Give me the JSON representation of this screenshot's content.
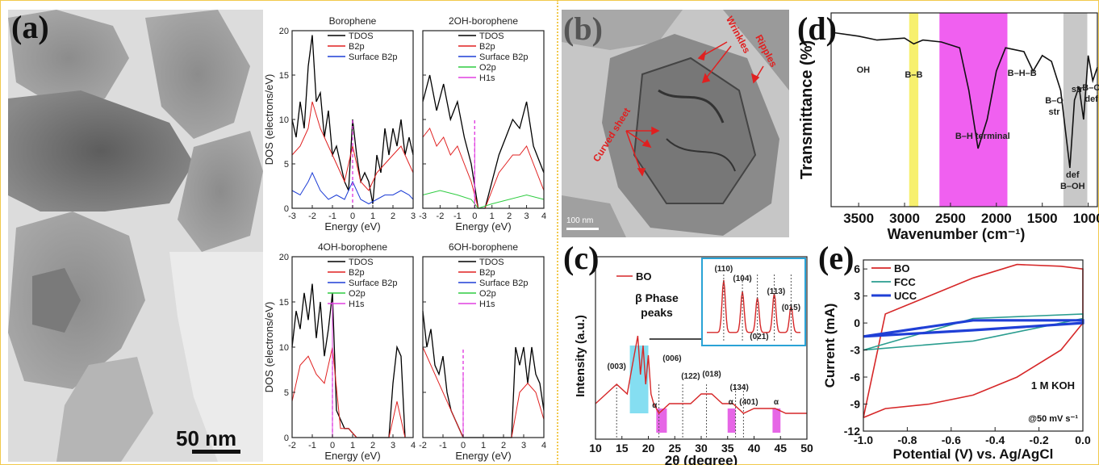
{
  "figure": {
    "border_color": "#f2c94c",
    "panel_a": {
      "label": "(a)",
      "scale_bar": "50 nm",
      "dos_ylabel": "DOS (electrons/eV)",
      "dos_xlabel": "Energy (eV)",
      "subplots": [
        {
          "title": "Borophene",
          "legend": [
            "TDOS",
            "B2p",
            "Surface B2p"
          ],
          "xticks": [
            "-3",
            "-2",
            "-1",
            "0",
            "1",
            "2",
            "3"
          ],
          "yticks": [
            "0",
            "5",
            "10",
            "15",
            "20"
          ]
        },
        {
          "title": "2OH-borophene",
          "legend": [
            "TDOS",
            "B2p",
            "Surface B2p",
            "O2p",
            "H1s"
          ],
          "xticks": [
            "-3",
            "-2",
            "-1",
            "0",
            "1",
            "2",
            "3",
            "4"
          ],
          "yticks": []
        },
        {
          "title": "4OH-borophene",
          "legend": [
            "TDOS",
            "B2p",
            "Surface B2p",
            "O2p",
            "H1s"
          ],
          "xticks": [
            "-2",
            "-1",
            "0",
            "1",
            "2",
            "3",
            "4"
          ],
          "yticks": [
            "0",
            "5",
            "10",
            "15",
            "20"
          ]
        },
        {
          "title": "6OH-borophene",
          "legend": [
            "TDOS",
            "B2p",
            "Surface B2p",
            "O2p",
            "H1s"
          ],
          "xticks": [
            "-2",
            "-1",
            "0",
            "1",
            "2",
            "3",
            "4"
          ],
          "yticks": []
        }
      ],
      "series_colors": {
        "TDOS": "#000000",
        "B2p": "#e02020",
        "Surface B2p": "#1f3fd6",
        "O2p": "#2ecc40",
        "H1s": "#e040e0"
      }
    },
    "panel_b": {
      "label": "(b)",
      "annotations": [
        "Wrinkles",
        "Ripples",
        "Curved sheet"
      ],
      "scale_bar": "100 nm",
      "annotation_color": "#e02020"
    },
    "panel_c": {
      "label": "(c)",
      "legend": "BO",
      "ylabel": "Intensity (a.u.)",
      "xlabel": "2θ (degree)",
      "xticks": [
        "10",
        "15",
        "20",
        "25",
        "30",
        "35",
        "40",
        "45",
        "50"
      ],
      "phase_note": "β Phase\npeaks",
      "peaks": [
        "(003)",
        "(006)",
        "(122)",
        "(018)",
        "(134)",
        "(401)",
        "α",
        "α",
        "α"
      ],
      "inset_peaks": [
        "(110)",
        "(104)",
        "(021)",
        "(113)",
        "(015)"
      ]
    },
    "panel_d": {
      "label": "(d)",
      "ylabel": "Transmittance (%)",
      "xlabel": "Wavenumber (cm⁻¹)",
      "xticks": [
        "3500",
        "3000",
        "2500",
        "2000",
        "1500",
        "1000"
      ],
      "bands": [
        "OH",
        "B–B",
        "B–H terminal",
        "B–H–B",
        "B–O\nstr",
        "str",
        "def\nB–OH",
        "B–O\ndef"
      ]
    },
    "panel_e": {
      "label": "(e)",
      "ylabel": "Current (mA)",
      "xlabel": "Potential (V) vs. Ag/AgCl",
      "xticks": [
        "-1.0",
        "-0.8",
        "-0.6",
        "-0.4",
        "-0.2",
        "0.0"
      ],
      "yticks": [
        "6",
        "3",
        "0",
        "-3",
        "-6",
        "-9",
        "-12"
      ],
      "legend": [
        "BO",
        "FCC",
        "UCC"
      ],
      "note1": "1 M KOH",
      "note2": "@50 mV s⁻¹",
      "series_colors": {
        "BO": "#d62728",
        "FCC": "#2a9d8f",
        "UCC": "#1f3fd6"
      }
    }
  },
  "chart_data": [
    {
      "type": "line",
      "title": "Borophene",
      "xlabel": "Energy (eV)",
      "ylabel": "DOS (electrons/eV)",
      "xlim": [
        -3,
        3
      ],
      "ylim": [
        0,
        20
      ],
      "series": [
        {
          "name": "TDOS",
          "x": [
            -3,
            -2.8,
            -2.6,
            -2.4,
            -2.2,
            -2,
            -1.8,
            -1.6,
            -1.4,
            -1.2,
            -1,
            -0.8,
            -0.6,
            -0.4,
            -0.2,
            0,
            0.2,
            0.4,
            0.6,
            0.8,
            1,
            1.2,
            1.4,
            1.6,
            1.8,
            2,
            2.2,
            2.4,
            2.6,
            2.8,
            3
          ],
          "y": [
            10,
            8,
            12,
            9,
            16,
            19.5,
            12,
            13,
            8,
            11,
            6,
            7,
            5,
            3,
            2,
            10,
            6,
            3,
            4,
            3,
            0.5,
            6,
            4,
            9,
            6,
            9,
            7,
            10,
            6,
            8,
            6
          ]
        },
        {
          "name": "B2p",
          "x": [
            -3,
            -2.6,
            -2.2,
            -2,
            -1.6,
            -1.2,
            -0.8,
            -0.4,
            0,
            0.4,
            0.8,
            1.2,
            1.6,
            2,
            2.4,
            2.8,
            3
          ],
          "y": [
            6,
            7,
            9,
            12,
            9,
            7,
            5,
            3,
            7,
            3,
            2,
            4,
            5,
            6,
            7,
            5,
            4
          ]
        },
        {
          "name": "Surface B2p",
          "x": [
            -3,
            -2.6,
            -2.2,
            -2,
            -1.6,
            -1.2,
            -0.8,
            -0.4,
            0,
            0.4,
            0.8,
            1.2,
            1.6,
            2,
            2.4,
            2.8,
            3
          ],
          "y": [
            2,
            1.5,
            3,
            4,
            2,
            1,
            1.5,
            1,
            3,
            1,
            0.5,
            1,
            1.5,
            1.5,
            2,
            1.5,
            1
          ]
        }
      ]
    },
    {
      "type": "line",
      "title": "2OH-borophene",
      "xlabel": "Energy (eV)",
      "xlim": [
        -3,
        4
      ],
      "ylim": [
        0,
        20
      ],
      "series": [
        {
          "name": "TDOS",
          "x": [
            -3,
            -2.6,
            -2.2,
            -1.8,
            -1.4,
            -1,
            -0.6,
            -0.2,
            0.2,
            0.6,
            1,
            1.4,
            1.8,
            2.2,
            2.6,
            3,
            3.4,
            3.8,
            4
          ],
          "y": [
            12,
            15,
            11,
            14,
            10,
            12,
            8,
            5,
            0,
            0,
            3,
            6,
            8,
            10,
            9,
            12,
            7,
            5,
            4
          ]
        },
        {
          "name": "B2p",
          "x": [
            -3,
            -2.6,
            -2.2,
            -1.8,
            -1.4,
            -1,
            -0.6,
            -0.2,
            0.2,
            0.6,
            1,
            1.4,
            1.8,
            2.2,
            2.6,
            3,
            3.4,
            3.8,
            4
          ],
          "y": [
            8,
            9,
            7,
            8,
            6,
            7,
            5,
            3,
            0,
            0,
            2,
            4,
            5,
            6,
            6,
            7,
            5,
            3,
            2
          ]
        },
        {
          "name": "O2p",
          "x": [
            -3,
            -2,
            -1,
            -0.2,
            0.2,
            1,
            2,
            3,
            4
          ],
          "y": [
            1.5,
            2,
            1.5,
            1,
            0,
            0.5,
            1,
            1.5,
            1
          ]
        },
        {
          "name": "H1s",
          "x": [
            0,
            0
          ],
          "y": [
            0,
            8
          ]
        }
      ]
    },
    {
      "type": "line",
      "title": "4OH-borophene",
      "xlabel": "Energy (eV)",
      "ylabel": "DOS (electrons/eV)",
      "xlim": [
        -2,
        4
      ],
      "ylim": [
        0,
        20
      ],
      "series": [
        {
          "name": "TDOS",
          "x": [
            -2,
            -1.8,
            -1.6,
            -1.4,
            -1.2,
            -1,
            -0.8,
            -0.6,
            -0.4,
            -0.2,
            0,
            0.2,
            0.4,
            0.6,
            0.8,
            1,
            1.2,
            2.8,
            3,
            3.2,
            3.4,
            3.6
          ],
          "y": [
            10,
            14,
            12,
            16,
            13,
            17,
            11,
            15,
            9,
            12,
            16,
            3,
            2,
            1,
            1,
            0.5,
            0,
            0,
            6,
            10,
            9,
            0
          ]
        },
        {
          "name": "B2p",
          "x": [
            -2,
            -1.6,
            -1.2,
            -0.8,
            -0.4,
            0,
            0.4,
            0.8,
            1.2,
            2.8,
            3.2,
            3.6
          ],
          "y": [
            4,
            8,
            9,
            7,
            6,
            10,
            1,
            1,
            0,
            0,
            4,
            0
          ]
        },
        {
          "name": "H1s",
          "x": [
            0,
            0
          ],
          "y": [
            0,
            15
          ]
        }
      ]
    },
    {
      "type": "line",
      "title": "6OH-borophene",
      "xlabel": "Energy (eV)",
      "xlim": [
        -2,
        4
      ],
      "ylim": [
        0,
        20
      ],
      "series": [
        {
          "name": "TDOS",
          "x": [
            -2,
            -1.8,
            -1.6,
            -1.4,
            -1.2,
            -1,
            -0.8,
            -0.6,
            -0.4,
            -0.2,
            0,
            2.4,
            2.6,
            2.8,
            3,
            3.2,
            3.4,
            3.6,
            3.8,
            4
          ],
          "y": [
            14,
            10,
            12,
            8,
            7,
            9,
            5,
            3,
            2,
            1,
            0,
            0,
            10,
            8,
            10,
            6,
            10,
            7,
            6,
            3
          ]
        },
        {
          "name": "B2p",
          "x": [
            -2,
            -1.6,
            -1.2,
            -0.8,
            -0.4,
            0,
            2.4,
            2.8,
            3.2,
            3.6,
            4
          ],
          "y": [
            10,
            8,
            6,
            4,
            2,
            0,
            0,
            5,
            6,
            5,
            2
          ]
        },
        {
          "name": "H1s",
          "x": [
            0,
            0
          ],
          "y": [
            0,
            7
          ]
        }
      ]
    },
    {
      "type": "line",
      "title": "",
      "xlabel": "2θ (degree)",
      "ylabel": "Intensity (a.u.)",
      "xlim": [
        10,
        50
      ],
      "series": [
        {
          "name": "BO",
          "x": [
            10,
            12,
            14,
            16,
            17,
            18,
            18.5,
            19,
            19.5,
            20,
            20.5,
            21,
            22,
            24,
            26,
            28,
            30,
            32,
            34,
            36,
            38,
            40,
            42,
            44,
            46,
            48,
            50
          ],
          "y": [
            2,
            3,
            4,
            3,
            6,
            9,
            5,
            8,
            4,
            7,
            3,
            2,
            1,
            2,
            2,
            2,
            3,
            3,
            2,
            2,
            1,
            1.5,
            1.5,
            1.5,
            1,
            1,
            1
          ]
        }
      ]
    },
    {
      "type": "line",
      "title": "",
      "xlabel": "Wavenumber (cm⁻¹)",
      "ylabel": "Transmittance (%)",
      "xlim": [
        3800,
        900
      ],
      "series": [
        {
          "name": "",
          "x": [
            3800,
            3500,
            3300,
            3000,
            2900,
            2800,
            2600,
            2400,
            2300,
            2200,
            2100,
            2000,
            1900,
            1700,
            1600,
            1500,
            1400,
            1300,
            1200,
            1150,
            1100,
            1050,
            1000,
            950,
            900
          ],
          "y": [
            90,
            88,
            86,
            87,
            84,
            86,
            85,
            82,
            60,
            30,
            45,
            70,
            82,
            80,
            70,
            78,
            75,
            60,
            20,
            55,
            62,
            45,
            78,
            65,
            72
          ]
        }
      ]
    },
    {
      "type": "line",
      "title": "",
      "xlabel": "Potential (V) vs. Ag/AgCl",
      "ylabel": "Current (mA)",
      "xlim": [
        -1.0,
        0.0
      ],
      "ylim": [
        -12,
        7
      ],
      "series": [
        {
          "name": "BO",
          "x": [
            -1.0,
            -0.9,
            -0.7,
            -0.5,
            -0.3,
            -0.1,
            0.0,
            0.0,
            -0.1,
            -0.3,
            -0.5,
            -0.7,
            -0.9,
            -1.0
          ],
          "y": [
            -10.5,
            -9.5,
            -9,
            -8,
            -6,
            -3,
            0,
            6,
            6.3,
            6.5,
            5,
            3,
            1,
            -10.5
          ]
        },
        {
          "name": "FCC",
          "x": [
            -1.0,
            -0.5,
            0.0,
            0.0,
            -0.5,
            -1.0
          ],
          "y": [
            -3,
            -2,
            0.5,
            1,
            0.5,
            -3
          ]
        },
        {
          "name": "UCC",
          "x": [
            -1.0,
            -0.5,
            0.0,
            0.0,
            -0.5,
            -1.0
          ],
          "y": [
            -1.5,
            -0.8,
            0,
            0.3,
            0.3,
            -1.5
          ]
        }
      ]
    }
  ]
}
